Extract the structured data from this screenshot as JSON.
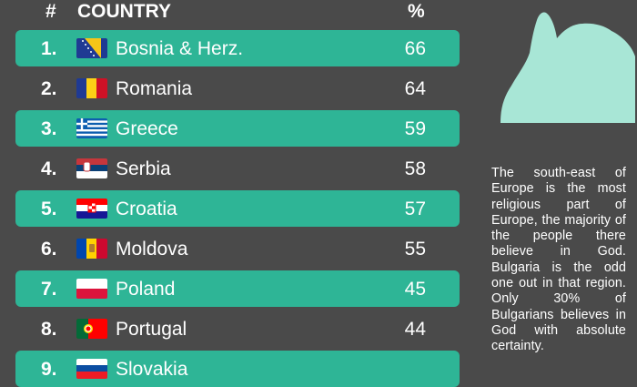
{
  "header": {
    "rank_label": "#",
    "country_label": "COUNTRY",
    "percent_label": "%"
  },
  "chart_data": {
    "type": "table",
    "columns": [
      "#",
      "COUNTRY",
      "%"
    ],
    "rows": [
      {
        "rank": "1.",
        "country": "Bosnia & Herz.",
        "value": 66,
        "flag": "bosnia-herzegovina",
        "highlight": true
      },
      {
        "rank": "2.",
        "country": "Romania",
        "value": 64,
        "flag": "romania",
        "highlight": false
      },
      {
        "rank": "3.",
        "country": "Greece",
        "value": 59,
        "flag": "greece",
        "highlight": true
      },
      {
        "rank": "4.",
        "country": "Serbia",
        "value": 58,
        "flag": "serbia",
        "highlight": false
      },
      {
        "rank": "5.",
        "country": "Croatia",
        "value": 57,
        "flag": "croatia",
        "highlight": true
      },
      {
        "rank": "6.",
        "country": "Moldova",
        "value": 55,
        "flag": "moldova",
        "highlight": false
      },
      {
        "rank": "7.",
        "country": "Poland",
        "value": 45,
        "flag": "poland",
        "highlight": true
      },
      {
        "rank": "8.",
        "country": "Portugal",
        "value": 44,
        "flag": "portugal",
        "highlight": false
      },
      {
        "rank": "9.",
        "country": "Slovakia",
        "value": null,
        "flag": "slovakia",
        "highlight": true
      }
    ]
  },
  "side_text": "The south-east of Europe is the most religious part of Europe, the majority of the people there believe in God. Bulgaria is the odd one out in that region. Only 30% of Bulgarians believes in God with absolute certainty.",
  "colors": {
    "background": "#4a4a4a",
    "accent": "#2eb596",
    "silhouette": "#a8e6d6"
  },
  "icons": {
    "illustration": "praying-person-silhouette-icon"
  }
}
